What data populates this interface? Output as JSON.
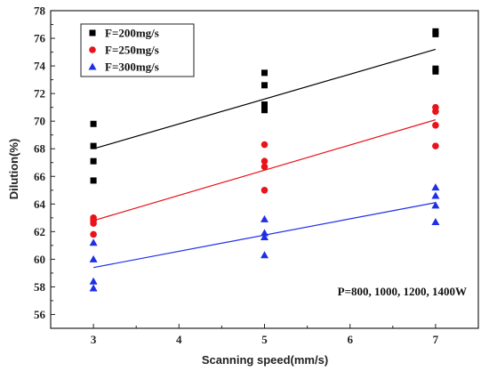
{
  "chart_data": {
    "type": "scatter",
    "xlabel": "Scanning speed(mm/s)",
    "ylabel": "Dilution(%)",
    "xlim": [
      2.5,
      7.5
    ],
    "ylim": [
      55,
      78
    ],
    "x_ticks": [
      3,
      4,
      5,
      6,
      7
    ],
    "y_ticks": [
      56,
      58,
      60,
      62,
      64,
      66,
      68,
      70,
      72,
      74,
      76,
      78
    ],
    "grid": false,
    "legend_position": "top-left",
    "annotation": "P=800, 1000, 1200, 1400W",
    "series": [
      {
        "name": "F=200mg/s",
        "marker": "square",
        "color": "#000000",
        "x": [
          3,
          3,
          3,
          3,
          5,
          5,
          5,
          5,
          7,
          7,
          7,
          7
        ],
        "y": [
          69.8,
          68.2,
          67.1,
          65.7,
          73.5,
          72.6,
          71.2,
          70.8,
          76.5,
          76.3,
          73.8,
          73.6
        ],
        "fit": [
          [
            3,
            68.0
          ],
          [
            7,
            75.2
          ]
        ]
      },
      {
        "name": "F=250mg/s",
        "marker": "circle",
        "color": "#e8141b",
        "x": [
          3,
          3,
          3,
          3,
          5,
          5,
          5,
          5,
          7,
          7,
          7,
          7
        ],
        "y": [
          63.0,
          62.8,
          62.6,
          61.8,
          68.3,
          67.1,
          66.7,
          65.0,
          71.0,
          70.7,
          69.7,
          68.2
        ],
        "fit": [
          [
            3,
            62.8
          ],
          [
            7,
            70.1
          ]
        ]
      },
      {
        "name": "F=300mg/s",
        "marker": "triangle",
        "color": "#1f2fe8",
        "x": [
          3,
          3,
          3,
          3,
          5,
          5,
          5,
          5,
          7,
          7,
          7,
          7
        ],
        "y": [
          61.2,
          60.0,
          58.4,
          57.9,
          62.9,
          61.9,
          61.6,
          60.3,
          65.2,
          64.6,
          63.9,
          62.7
        ],
        "fit": [
          [
            3,
            59.4
          ],
          [
            7,
            64.1
          ]
        ]
      }
    ]
  }
}
